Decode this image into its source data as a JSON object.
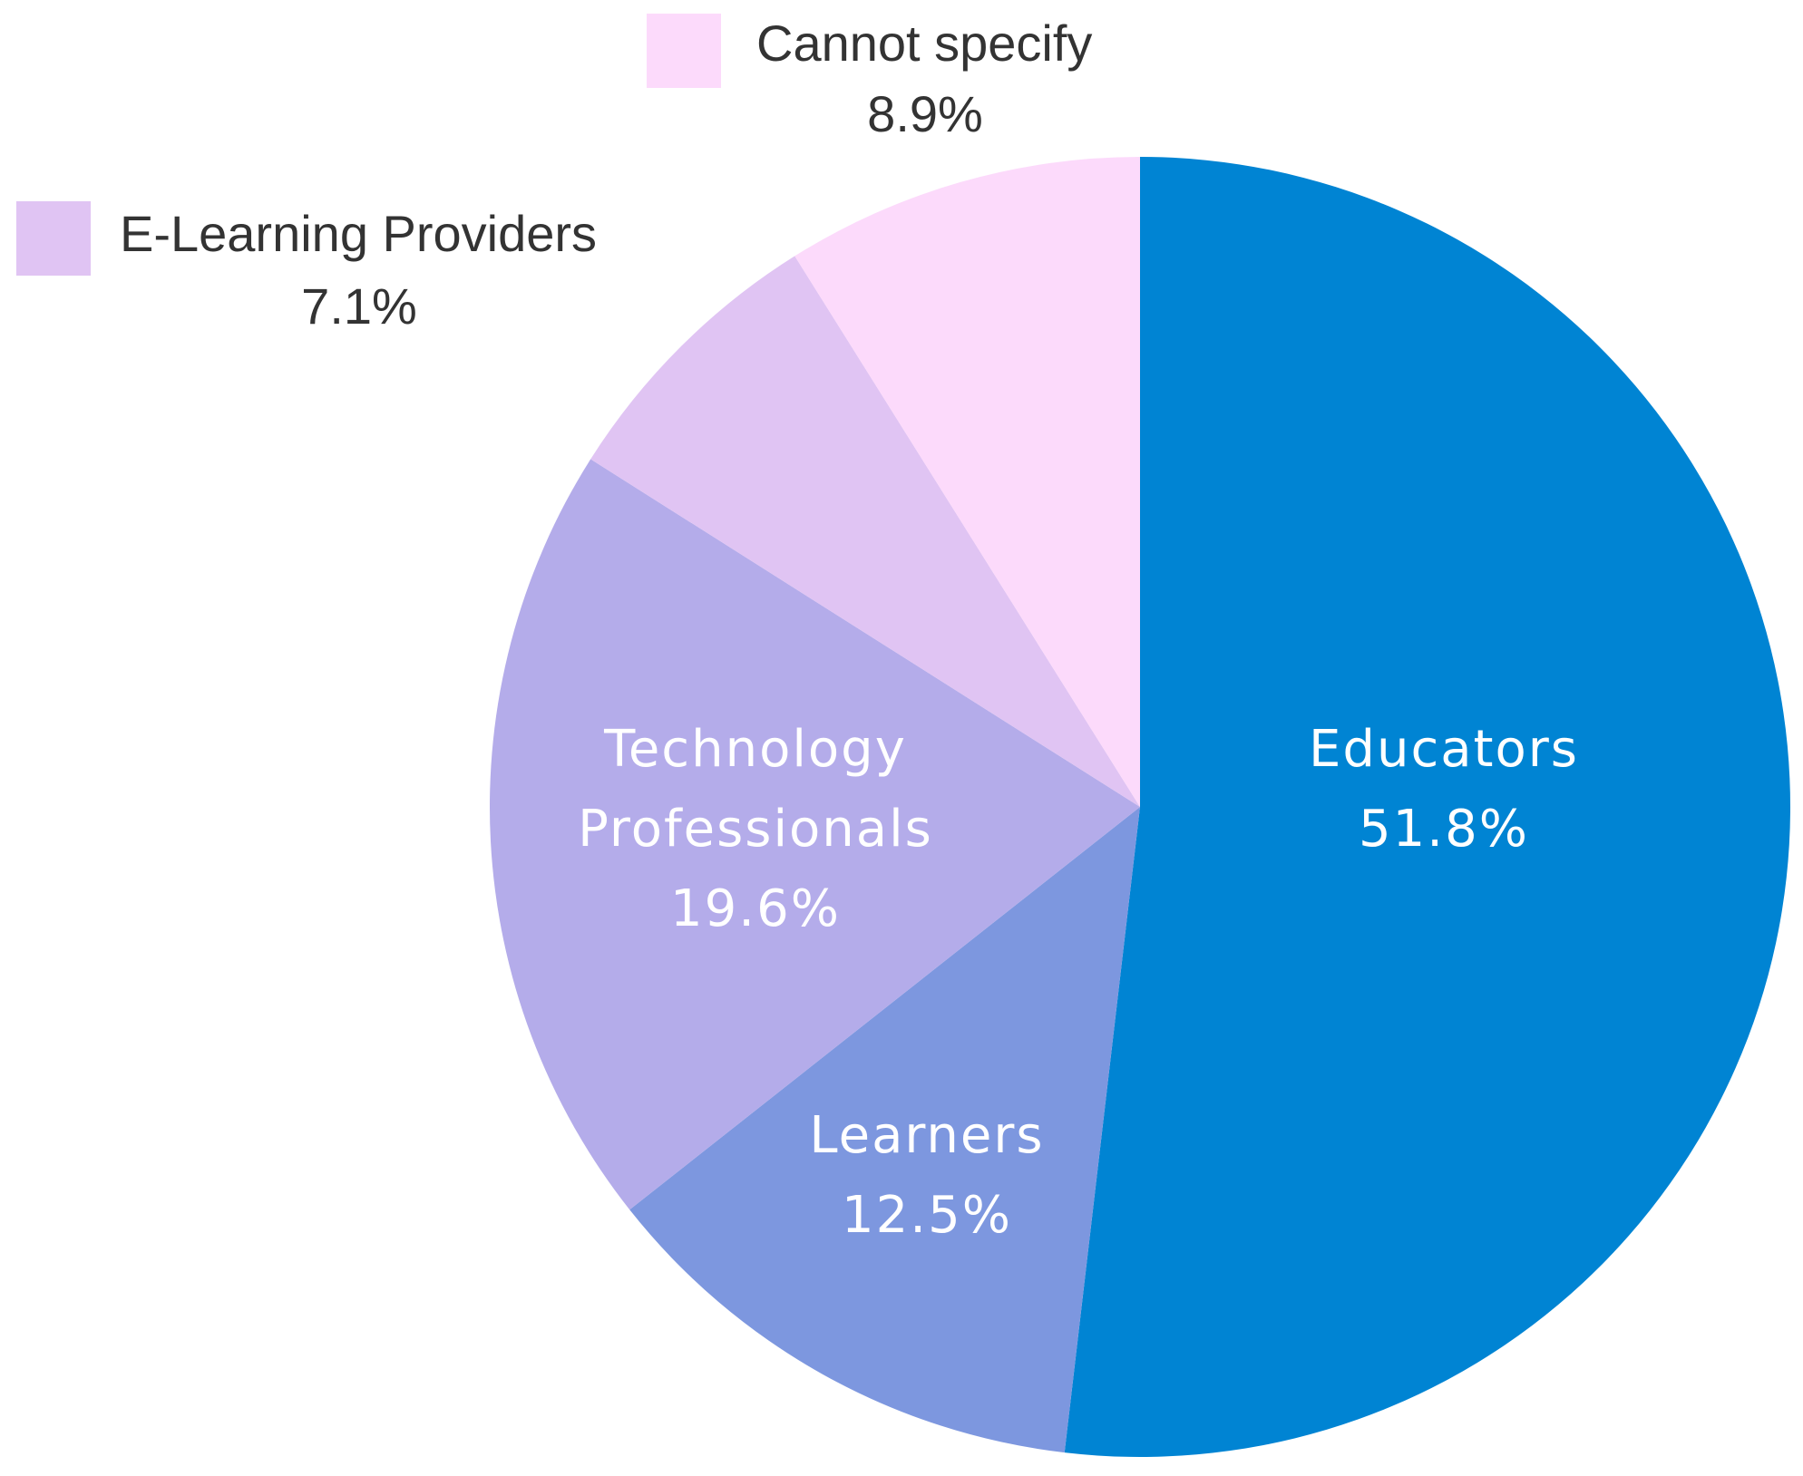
{
  "chart_data": {
    "type": "pie",
    "title": "",
    "start": "12 o'clock",
    "direction": "clockwise",
    "slices": [
      {
        "label": "Educators",
        "value": 51.8,
        "value_label": "51.8%",
        "color": "#0084D3",
        "label_position": "inside"
      },
      {
        "label": "Learners",
        "value": 12.5,
        "value_label": "12.5%",
        "color": "#7D97DF",
        "label_position": "inside"
      },
      {
        "label": "Technology Professionals",
        "label_lines": [
          "Technology",
          "Professionals"
        ],
        "value": 19.6,
        "value_label": "19.6%",
        "color": "#B4ACEA",
        "label_position": "inside"
      },
      {
        "label": "E-Learning Providers",
        "value": 7.1,
        "value_label": "7.1%",
        "color": "#E0C4F3",
        "label_position": "outside-with-swatch"
      },
      {
        "label": "Cannot specify",
        "value": 8.9,
        "value_label": "8.9%",
        "color": "#FCDAFB",
        "label_position": "outside-with-swatch"
      }
    ]
  }
}
